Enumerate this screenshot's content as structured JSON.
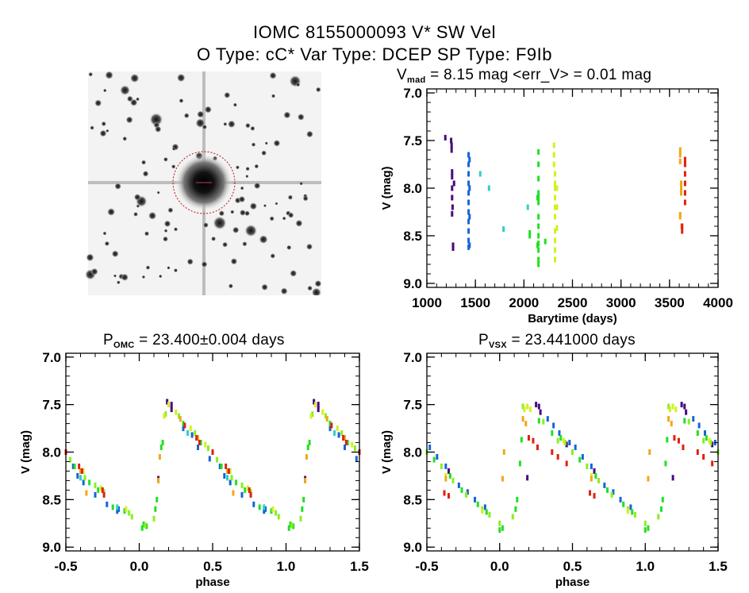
{
  "header": {
    "title": "IOMC 8155000093   V* SW Vel",
    "subtitle": "O Type: cC*  Var Type: DCEP  SP Type: F9Ib"
  },
  "thumbnail": {
    "label": "IOMC 8155000093 field image"
  },
  "colors": {
    "purple": "#4a0a7a",
    "blue": "#1464d8",
    "cyan": "#30d0c0",
    "green": "#22e022",
    "lightgreen": "#88f020",
    "yellowgreen": "#d4f020",
    "orange": "#f0a818",
    "red": "#e02010"
  },
  "chart_data": [
    {
      "type": "scatter",
      "id": "lightcurve",
      "title": {
        "main": "V",
        "sub": "mad",
        "rest": " = 8.15 mag <err_V> = 0.01 mag"
      },
      "xlabel": "Barytime (days)",
      "ylabel": "V (mag)",
      "xlim": [
        1000,
        4000
      ],
      "ylim": [
        9.042,
        6.958
      ],
      "xticks": [
        "1000",
        "1500",
        "2000",
        "2500",
        "3000",
        "3500",
        "4000"
      ],
      "xtick_values": [
        1000,
        1500,
        2000,
        2500,
        3000,
        3500,
        4000
      ],
      "yticks": [
        "7.0",
        "7.5",
        "8.0",
        "8.5",
        "9.0"
      ],
      "ytick_values": [
        7.0,
        7.5,
        8.0,
        8.5,
        9.0
      ],
      "series": [
        {
          "name": "purple",
          "points": [
            [
              1190,
              7.47
            ],
            [
              1250,
              7.5
            ],
            [
              1255,
              7.55
            ],
            [
              1255,
              7.6
            ],
            [
              1260,
              7.83
            ],
            [
              1260,
              7.88
            ],
            [
              1280,
              7.95
            ],
            [
              1260,
              8.0
            ],
            [
              1260,
              8.1
            ],
            [
              1265,
              8.2
            ],
            [
              1260,
              8.27
            ],
            [
              1270,
              8.6
            ],
            [
              1270,
              8.63
            ]
          ]
        },
        {
          "name": "blue",
          "points": [
            [
              1430,
              7.65
            ],
            [
              1430,
              7.75
            ],
            [
              1430,
              7.85
            ],
            [
              1430,
              7.95
            ],
            [
              1430,
              8.05
            ],
            [
              1430,
              8.15
            ],
            [
              1430,
              8.25
            ],
            [
              1430,
              8.35
            ],
            [
              1430,
              8.45
            ],
            [
              1430,
              8.55
            ],
            [
              1430,
              8.62
            ],
            [
              1440,
              7.7
            ],
            [
              1440,
              8.0
            ],
            [
              1440,
              8.3
            ],
            [
              1440,
              8.6
            ]
          ]
        },
        {
          "name": "cyan",
          "points": [
            [
              1550,
              7.85
            ],
            [
              1640,
              8.0
            ],
            [
              1790,
              8.43
            ],
            [
              2040,
              8.2
            ]
          ]
        },
        {
          "name": "green",
          "points": [
            [
              2060,
              8.47
            ],
            [
              2060,
              8.5
            ],
            [
              2150,
              7.62
            ],
            [
              2150,
              7.75
            ],
            [
              2150,
              7.9
            ],
            [
              2150,
              8.05
            ],
            [
              2150,
              8.1
            ],
            [
              2150,
              8.15
            ],
            [
              2150,
              8.3
            ],
            [
              2150,
              8.4
            ],
            [
              2150,
              8.5
            ],
            [
              2150,
              8.58
            ],
            [
              2150,
              8.65
            ],
            [
              2150,
              8.75
            ],
            [
              2150,
              8.8
            ],
            [
              2140,
              8.1
            ],
            [
              2140,
              8.6
            ],
            [
              2220,
              8.56
            ]
          ]
        },
        {
          "name": "yellowgreen",
          "points": [
            [
              2310,
              7.55
            ],
            [
              2310,
              7.65
            ],
            [
              2310,
              7.75
            ],
            [
              2320,
              7.85
            ],
            [
              2320,
              7.95
            ],
            [
              2320,
              8.0
            ],
            [
              2320,
              8.1
            ],
            [
              2320,
              8.2
            ],
            [
              2320,
              8.3
            ],
            [
              2320,
              8.45
            ],
            [
              2320,
              8.55
            ],
            [
              2320,
              8.65
            ],
            [
              2320,
              8.75
            ],
            [
              2340,
              8.0
            ],
            [
              2340,
              8.2
            ],
            [
              2340,
              8.42
            ]
          ]
        },
        {
          "name": "orange",
          "points": [
            [
              3610,
              7.6
            ],
            [
              3610,
              7.65
            ],
            [
              3610,
              7.72
            ],
            [
              3620,
              7.95
            ],
            [
              3620,
              8.0
            ],
            [
              3620,
              8.05
            ],
            [
              3610,
              8.28
            ],
            [
              3610,
              8.3
            ],
            [
              3625,
              8.4
            ]
          ]
        },
        {
          "name": "red",
          "points": [
            [
              3660,
              7.7
            ],
            [
              3660,
              7.75
            ],
            [
              3660,
              7.85
            ],
            [
              3660,
              7.95
            ],
            [
              3660,
              8.05
            ],
            [
              3660,
              8.15
            ],
            [
              3630,
              8.4
            ],
            [
              3630,
              8.45
            ]
          ]
        }
      ]
    },
    {
      "type": "scatter",
      "id": "phase-omc",
      "title": {
        "main": "P",
        "sub": "OMC",
        "rest": " = 23.400±0.004 days"
      },
      "xlabel": "phase",
      "ylabel": "V (mag)",
      "period_days": 23.4,
      "xlim": [
        -0.5,
        1.5
      ],
      "ylim": [
        9.04,
        6.96
      ],
      "xticks": [
        "-0.5",
        "0.0",
        "0.5",
        "1.0",
        "1.5"
      ],
      "xtick_values": [
        -0.5,
        0.0,
        0.5,
        1.0,
        1.5
      ],
      "yticks": [
        "7.0",
        "7.5",
        "8.0",
        "8.5",
        "9.0"
      ],
      "ytick_values": [
        7.0,
        7.5,
        8.0,
        8.5,
        9.0
      ],
      "series": [
        {
          "name": "purple",
          "points": [
            [
              0.19,
              7.47
            ],
            [
              0.22,
              7.5
            ],
            [
              0.22,
              7.55
            ],
            [
              0.13,
              8.28
            ],
            [
              0.5,
              8.0
            ]
          ]
        },
        {
          "name": "blue",
          "points": [
            [
              0.3,
              7.75
            ],
            [
              0.36,
              7.82
            ],
            [
              0.4,
              7.95
            ],
            [
              0.48,
              8.07
            ],
            [
              0.55,
              8.15
            ],
            [
              0.58,
              8.25
            ],
            [
              0.62,
              8.32
            ],
            [
              0.7,
              8.45
            ],
            [
              0.78,
              8.55
            ],
            [
              0.85,
              8.62
            ],
            [
              0.86,
              8.6
            ]
          ]
        },
        {
          "name": "cyan",
          "points": [
            [
              0.33,
              7.8
            ],
            [
              0.6,
              8.27
            ],
            [
              0.85,
              8.58
            ]
          ]
        },
        {
          "name": "green",
          "points": [
            [
              0.02,
              8.8
            ],
            [
              0.03,
              8.76
            ],
            [
              0.05,
              8.78
            ],
            [
              0.11,
              8.6
            ],
            [
              0.12,
              8.5
            ],
            [
              0.15,
              7.95
            ],
            [
              0.16,
              7.9
            ],
            [
              0.3,
              7.7
            ],
            [
              0.42,
              7.9
            ],
            [
              0.56,
              8.15
            ],
            [
              0.66,
              8.32
            ],
            [
              0.72,
              8.4
            ],
            [
              0.82,
              8.58
            ],
            [
              0.9,
              8.62
            ]
          ]
        },
        {
          "name": "lightgreen",
          "points": [
            [
              0.04,
              8.77
            ],
            [
              0.1,
              8.7
            ],
            [
              0.18,
              7.6
            ],
            [
              0.27,
              7.62
            ],
            [
              0.38,
              7.8
            ],
            [
              0.47,
              7.96
            ],
            [
              0.53,
              8.08
            ],
            [
              0.63,
              8.27
            ],
            [
              0.7,
              8.35
            ],
            [
              0.76,
              8.42
            ],
            [
              0.93,
              8.64
            ],
            [
              0.95,
              8.68
            ]
          ]
        },
        {
          "name": "yellowgreen",
          "points": [
            [
              0.17,
              7.62
            ],
            [
              0.2,
              7.5
            ],
            [
              0.25,
              7.58
            ],
            [
              0.35,
              7.75
            ],
            [
              0.45,
              7.92
            ],
            [
              0.62,
              8.2
            ],
            [
              0.74,
              8.38
            ],
            [
              0.91,
              8.6
            ]
          ]
        },
        {
          "name": "orange",
          "points": [
            [
              0.13,
              8.3
            ],
            [
              0.14,
              8.05
            ],
            [
              0.28,
              7.65
            ],
            [
              0.4,
              7.85
            ],
            [
              0.6,
              8.2
            ],
            [
              0.64,
              8.43
            ]
          ]
        },
        {
          "name": "red",
          "points": [
            [
              0.31,
              7.72
            ],
            [
              0.39,
              7.85
            ],
            [
              0.41,
              7.9
            ],
            [
              0.5,
              8.0
            ],
            [
              0.59,
              8.15
            ],
            [
              0.61,
              8.2
            ],
            [
              0.75,
              8.4
            ],
            [
              0.76,
              8.45
            ]
          ]
        }
      ]
    },
    {
      "type": "scatter",
      "id": "phase-vsx",
      "title": {
        "main": "P",
        "sub": "VSX",
        "rest": " = 23.441000 days"
      },
      "xlabel": "phase",
      "ylabel": "V (mag)",
      "period_days": 23.441,
      "xlim": [
        -0.5,
        1.5
      ],
      "ylim": [
        9.04,
        6.96
      ],
      "xticks": [
        "-0.5",
        "0.0",
        "0.5",
        "1.0",
        "1.5"
      ],
      "xtick_values": [
        -0.5,
        0.0,
        0.5,
        1.0,
        1.5
      ],
      "yticks": [
        "7.0",
        "7.5",
        "8.0",
        "8.5",
        "9.0"
      ],
      "ytick_values": [
        7.0,
        7.5,
        8.0,
        8.5,
        9.0
      ],
      "series": [
        {
          "name": "purple",
          "points": [
            [
              0.25,
              7.5
            ],
            [
              0.27,
              7.52
            ],
            [
              0.28,
              7.58
            ],
            [
              0.46,
              7.92
            ],
            [
              0.65,
              8.2
            ],
            [
              0.19,
              8.27
            ]
          ]
        },
        {
          "name": "blue",
          "points": [
            [
              0.33,
              7.65
            ],
            [
              0.37,
              7.72
            ],
            [
              0.41,
              7.8
            ],
            [
              0.48,
              7.9
            ],
            [
              0.52,
              7.95
            ],
            [
              0.57,
              8.05
            ],
            [
              0.63,
              8.15
            ],
            [
              0.72,
              8.35
            ],
            [
              0.78,
              8.42
            ],
            [
              0.83,
              8.5
            ],
            [
              0.9,
              8.58
            ]
          ]
        },
        {
          "name": "green",
          "points": [
            [
              0.0,
              8.82
            ],
            [
              0.02,
              8.8
            ],
            [
              0.11,
              8.6
            ],
            [
              0.12,
              8.5
            ],
            [
              0.14,
              8.12
            ],
            [
              0.15,
              7.87
            ],
            [
              0.27,
              7.67
            ],
            [
              0.36,
              7.8
            ],
            [
              0.42,
              7.85
            ],
            [
              0.55,
              8.08
            ],
            [
              0.66,
              8.25
            ],
            [
              0.74,
              8.4
            ],
            [
              0.85,
              8.55
            ],
            [
              0.91,
              8.63
            ]
          ]
        },
        {
          "name": "lightgreen",
          "points": [
            [
              0.0,
              8.75
            ],
            [
              0.09,
              8.68
            ],
            [
              0.16,
              7.52
            ],
            [
              0.3,
              7.68
            ],
            [
              0.4,
              7.88
            ],
            [
              0.45,
              7.9
            ],
            [
              0.5,
              8.0
            ],
            [
              0.6,
              8.15
            ],
            [
              0.68,
              8.3
            ],
            [
              0.77,
              8.45
            ],
            [
              0.88,
              8.6
            ],
            [
              0.93,
              8.66
            ]
          ]
        },
        {
          "name": "yellowgreen",
          "points": [
            [
              0.17,
              7.55
            ],
            [
              0.19,
              7.52
            ],
            [
              0.21,
              7.55
            ],
            [
              0.44,
              7.88
            ],
            [
              0.63,
              8.25
            ],
            [
              0.88,
              8.62
            ]
          ]
        },
        {
          "name": "orange",
          "points": [
            [
              0.03,
              8.0
            ],
            [
              0.02,
              8.28
            ],
            [
              0.16,
              7.65
            ],
            [
              0.18,
              7.7
            ],
            [
              0.63,
              8.28
            ]
          ]
        },
        {
          "name": "red",
          "points": [
            [
              0.2,
              7.85
            ],
            [
              0.23,
              7.88
            ],
            [
              0.26,
              7.95
            ],
            [
              0.36,
              8.0
            ],
            [
              0.4,
              8.05
            ],
            [
              0.46,
              8.12
            ],
            [
              0.62,
              8.43
            ],
            [
              0.65,
              8.46
            ]
          ]
        }
      ]
    }
  ]
}
